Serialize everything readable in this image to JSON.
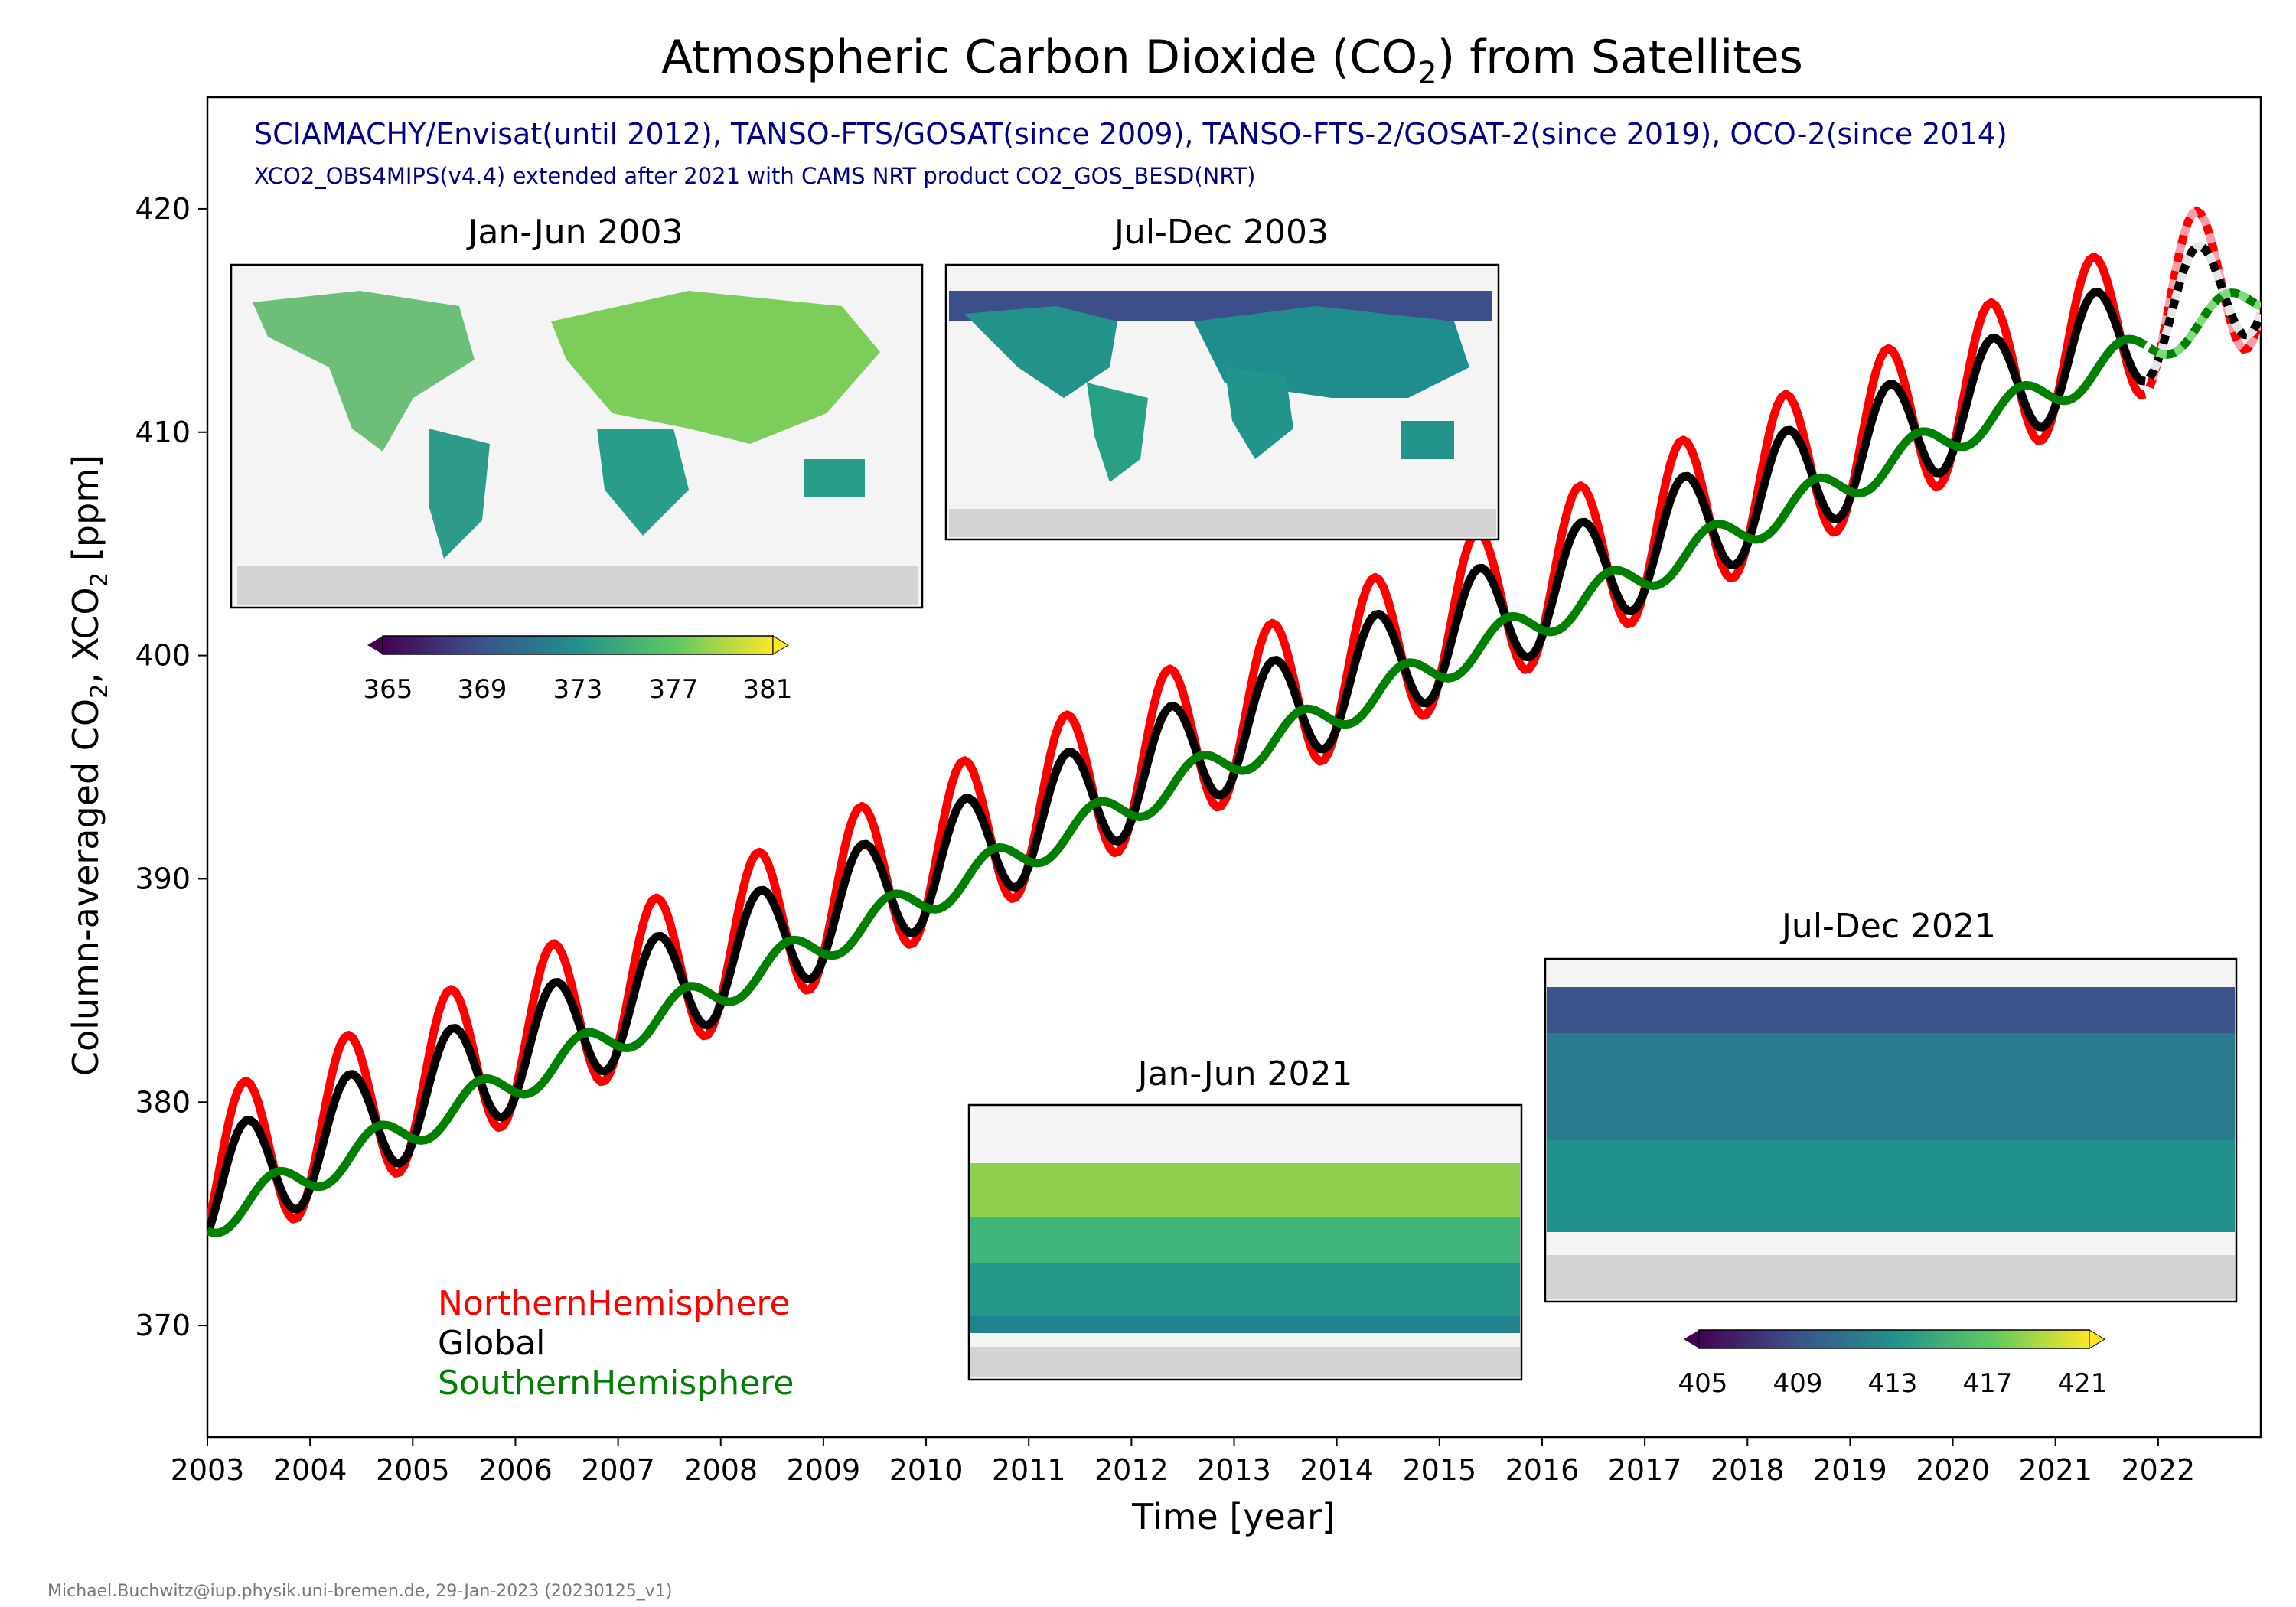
{
  "chart_data": {
    "type": "line",
    "title_main": "Atmospheric Carbon Dioxide (CO",
    "title_sub": "2",
    "title_end": ") from Satellites",
    "subtitle_1": "SCIAMACHY/Envisat(until 2012), TANSO-FTS/GOSAT(since 2009), TANSO-FTS-2/GOSAT-2(since 2019), OCO-2(since 2014)",
    "subtitle_2": "XCO2_OBS4MIPS(v4.4) extended after 2021 with CAMS NRT product CO2_GOS_BESD(NRT)",
    "xlabel": "Time [year]",
    "ylabel_a": "Column-averaged CO",
    "ylabel_b": "2",
    "ylabel_c": ", XCO",
    "ylabel_d": "2",
    "ylabel_e": " [ppm]",
    "xlim": [
      2003,
      2023.0
    ],
    "ylim": [
      365,
      425
    ],
    "x_ticks": [
      "2003",
      "2004",
      "2005",
      "2006",
      "2007",
      "2008",
      "2009",
      "2010",
      "2011",
      "2012",
      "2013",
      "2014",
      "2015",
      "2016",
      "2017",
      "2018",
      "2019",
      "2020",
      "2021",
      "2022"
    ],
    "y_ticks": [
      "370",
      "380",
      "390",
      "400",
      "410",
      "420"
    ],
    "grid": false,
    "legend_position": "bottom-left",
    "nrt_from_year": 2021.9,
    "series": [
      {
        "name": "NorthernHemisphere",
        "color": "#ff0000",
        "trend": [
          376.6,
          2.05
        ],
        "amp": 3.6,
        "phase": 0.06
      },
      {
        "name": "Global",
        "color": "#000000",
        "trend": [
          375.9,
          2.06
        ],
        "amp": 2.5,
        "phase": 0.08
      },
      {
        "name": "SouthernHemisphere",
        "color": "#008000",
        "trend": [
          374.7,
          2.07
        ],
        "amp": 0.8,
        "phase": 0.35
      }
    ],
    "nrt_colors": {
      "NorthernHemisphere": "#ff9aa8",
      "Global": "#e5e5e5",
      "SouthernHemisphere": "#7cdc7c"
    },
    "insets": [
      {
        "label": "Jan-Jun 2003",
        "cb_ticks": [
          "365",
          "369",
          "373",
          "377",
          "381"
        ]
      },
      {
        "label": "Jul-Dec 2003"
      },
      {
        "label": "Jan-Jun 2021"
      },
      {
        "label": "Jul-Dec 2021",
        "cb_ticks": [
          "405",
          "409",
          "413",
          "417",
          "421"
        ]
      }
    ],
    "credit": "Michael.Buchwitz@iup.physik.uni-bremen.de, 29-Jan-2023 (20230125_v1)"
  }
}
